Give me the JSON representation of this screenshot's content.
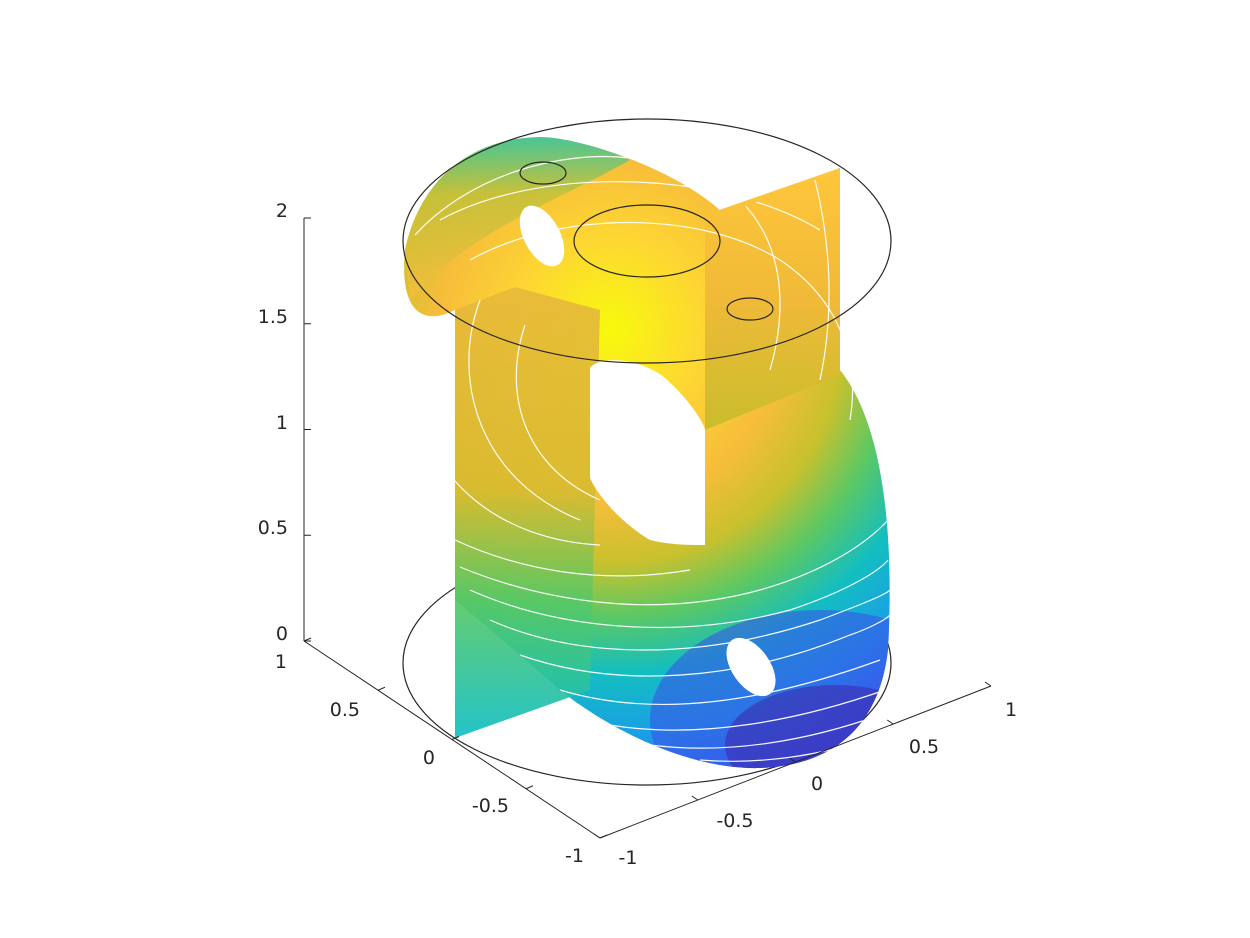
{
  "chart_data": {
    "type": "surface",
    "title": "",
    "xlabel": "",
    "ylabel": "",
    "zlabel": "",
    "colormap": "parula",
    "color_scale": [
      "#3e26a8",
      "#2e87f7",
      "#13bec0",
      "#5cc863",
      "#d9bb30",
      "#ffc737",
      "#f8fa0d"
    ],
    "edge_color": "#262626",
    "contour_color": "#ffffff",
    "grid": false,
    "view": "3d",
    "x_axis": {
      "range": [
        -1,
        1
      ],
      "tick_labels": [
        "-1",
        "-0.5",
        "0",
        "0.5",
        "1"
      ]
    },
    "y_axis": {
      "range": [
        -1,
        1
      ],
      "tick_labels": [
        "-1",
        "-0.5",
        "0",
        "0.5",
        "1"
      ]
    },
    "z_axis": {
      "range": [
        0,
        2
      ],
      "tick_labels": [
        "0",
        "0.5",
        "1",
        "1.5",
        "2"
      ]
    },
    "geometry": {
      "cylinder_radius": 1,
      "cylinder_height": 2,
      "top_face_holes": 3,
      "plane_holes": 2,
      "description_free": true
    },
    "color_value_range": [
      0,
      1
    ]
  }
}
